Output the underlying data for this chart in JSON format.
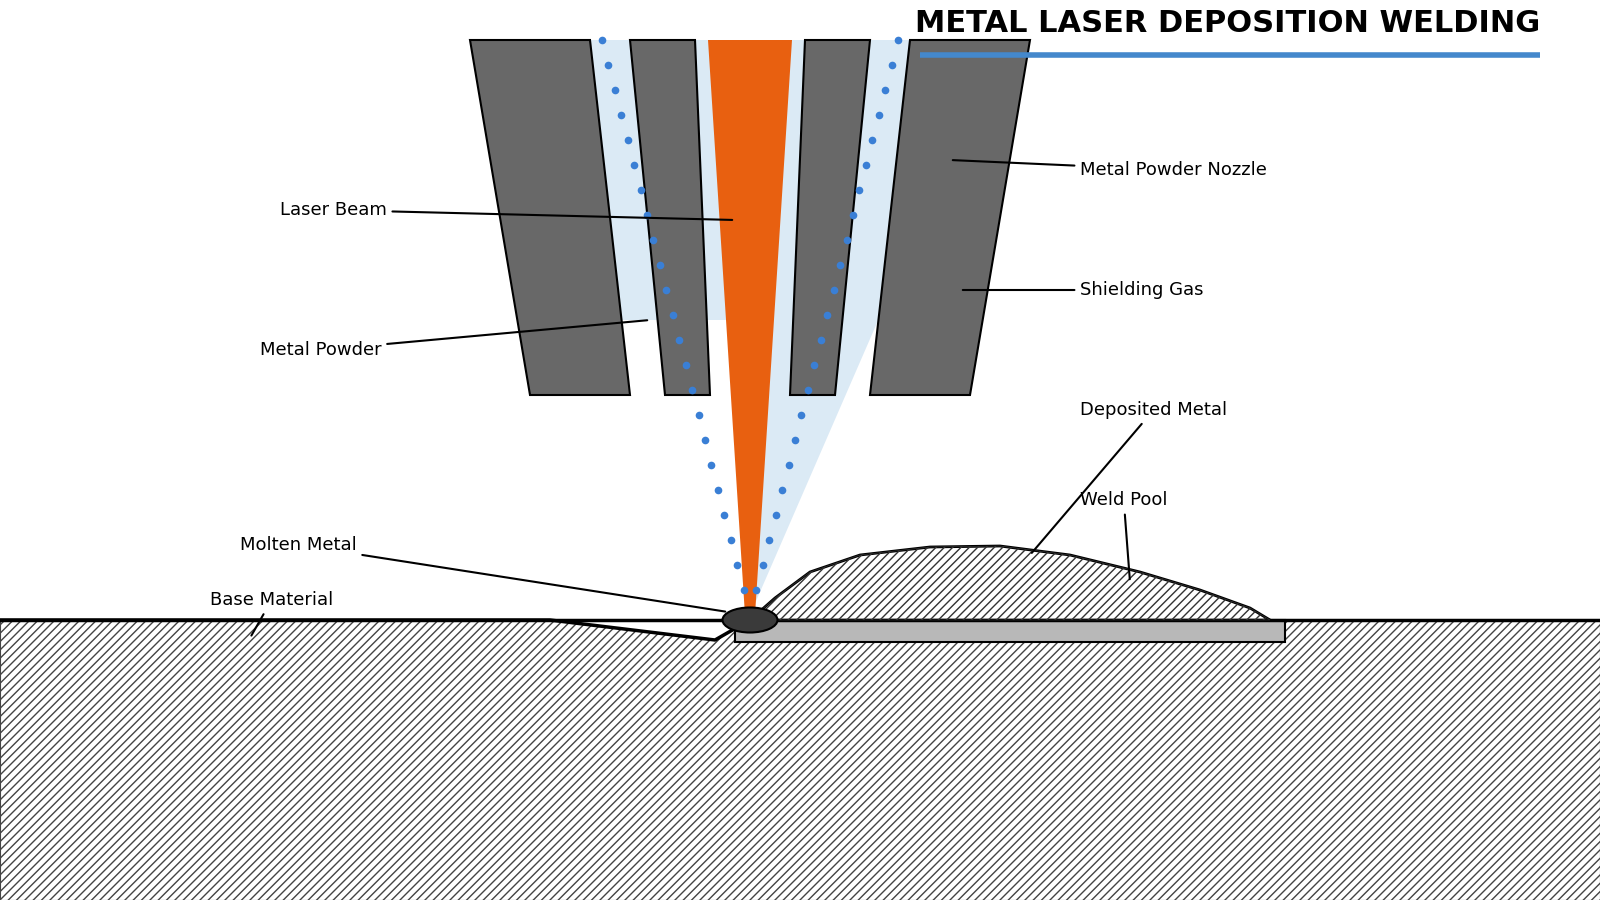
{
  "title": "METAL LASER DEPOSITION WELDING",
  "title_fontsize": 22,
  "title_color": "#000000",
  "title_underline_color": "#4488cc",
  "bg_color": "#ffffff",
  "colors": {
    "gray_nozzle": "#686868",
    "orange_laser": "#e86010",
    "light_blue_shielding": "#c8dff0",
    "blue_dotted": "#3a7fd5",
    "weld_dark": "#4a4a4a",
    "gray_substrate": "#b8b8b8",
    "base_hatch": "#333333"
  },
  "labels": {
    "laser_beam": "Laser Beam",
    "metal_powder": "Metal Powder",
    "molten_metal": "Molten Metal",
    "base_material": "Base Material",
    "metal_powder_nozzle": "Metal Powder Nozzle",
    "shielding_gas": "Shielding Gas",
    "deposited_metal": "Deposited Metal",
    "weld_pool": "Weld Pool"
  },
  "label_fontsize": 13
}
